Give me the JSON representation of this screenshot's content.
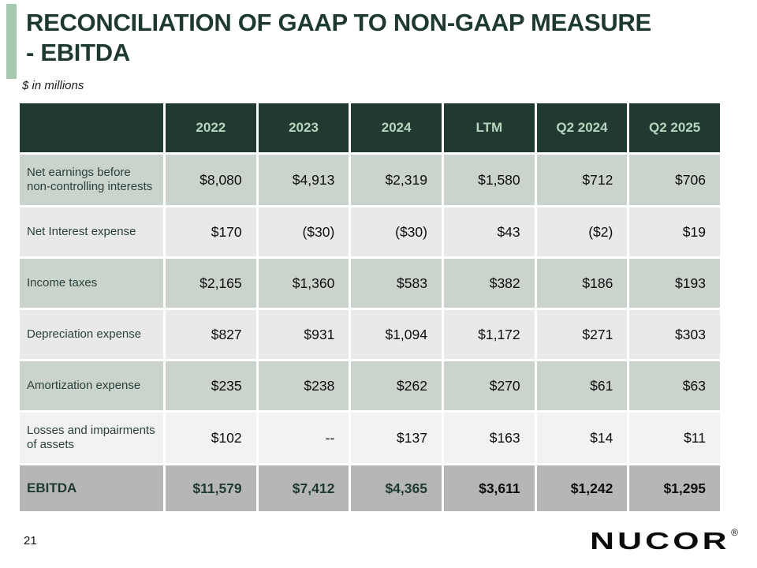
{
  "slide": {
    "title": "RECONCILIATION OF GAAP TO NON-GAAP MEASURE - EBITDA",
    "subtitle": "$ in millions",
    "page_number": "21",
    "logo_text": "NUCOR",
    "logo_registered": "®"
  },
  "colors": {
    "accent_green": "#a6c9af",
    "dark_green": "#1e3931",
    "header_bg": "#203a31",
    "header_text": "#b6d4be",
    "label_green": "#2a413b",
    "row_odd_bg": "#cbd3cd",
    "row_even_bg": "#e9e9e9",
    "row_light_bg": "#f2f2f1",
    "total_bg": "#b6b6b6"
  },
  "table": {
    "columns": [
      "2022",
      "2023",
      "2024",
      "LTM",
      "Q2 2024",
      "Q2 2025"
    ],
    "rows": [
      {
        "label": "Net earnings before\nnon-controlling interests",
        "values": [
          "$8,080",
          "$4,913",
          "$2,319",
          "$1,580",
          "$712",
          "$706"
        ]
      },
      {
        "label": "Net Interest expense",
        "values": [
          "$170",
          "($30)",
          "($30)",
          "$43",
          "($2)",
          "$19"
        ]
      },
      {
        "label": "Income taxes",
        "values": [
          "$2,165",
          "$1,360",
          "$583",
          "$382",
          "$186",
          "$193"
        ]
      },
      {
        "label": "Depreciation expense",
        "values": [
          "$827",
          "$931",
          "$1,094",
          "$1,172",
          "$271",
          "$303"
        ]
      },
      {
        "label": "Amortization expense",
        "values": [
          "$235",
          "$238",
          "$262",
          "$270",
          "$61",
          "$63"
        ]
      },
      {
        "label": "Losses and impairments\nof assets",
        "values": [
          "$102",
          "--",
          "$137",
          "$163",
          "$14",
          "$11"
        ]
      },
      {
        "label": "EBITDA",
        "values": [
          "$11,579",
          "$7,412",
          "$4,365",
          "$3,611",
          "$1,242",
          "$1,295"
        ],
        "is_total": true,
        "green_value_indexes": [
          0,
          1,
          2
        ]
      }
    ]
  }
}
